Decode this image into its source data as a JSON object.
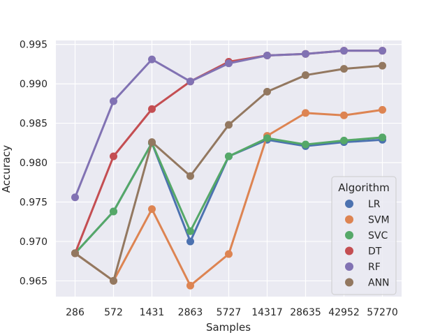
{
  "chart_data": {
    "type": "line",
    "xlabel": "Samples",
    "ylabel": "Accuracy",
    "categories": [
      "286",
      "572",
      "1431",
      "2863",
      "5727",
      "14317",
      "28635",
      "42952",
      "57270"
    ],
    "ylim": [
      0.963,
      0.9955
    ],
    "yticks": [
      "0.965",
      "0.970",
      "0.975",
      "0.980",
      "0.985",
      "0.990",
      "0.995"
    ],
    "grid": true,
    "legend": {
      "title": "Algorithm",
      "placement": "lower-right"
    },
    "series": [
      {
        "name": "LR",
        "color": "#4c72b0",
        "values": [
          0.9685,
          0.9738,
          0.9825,
          0.97,
          0.9808,
          0.9829,
          0.9821,
          0.9826,
          0.9829
        ]
      },
      {
        "name": "SVM",
        "color": "#dd8452",
        "values": [
          0.9685,
          0.965,
          0.9741,
          0.9644,
          0.9684,
          0.9834,
          0.9863,
          0.986,
          0.9867
        ]
      },
      {
        "name": "SVC",
        "color": "#55a868",
        "values": [
          0.9685,
          0.9738,
          0.9825,
          0.9713,
          0.9808,
          0.9831,
          0.9823,
          0.9828,
          0.9832
        ]
      },
      {
        "name": "DT",
        "color": "#c44e52",
        "values": [
          0.9685,
          0.9808,
          0.9868,
          0.9903,
          0.9928,
          0.9936,
          0.9938,
          0.9942,
          0.9942
        ]
      },
      {
        "name": "RF",
        "color": "#8172b3",
        "values": [
          0.9756,
          0.9878,
          0.9931,
          0.9903,
          0.9926,
          0.9936,
          0.9938,
          0.9942,
          0.9942
        ]
      },
      {
        "name": "ANN",
        "color": "#937860",
        "values": [
          0.9685,
          0.965,
          0.9826,
          0.9783,
          0.9848,
          0.989,
          0.9911,
          0.9919,
          0.9923
        ]
      }
    ]
  }
}
